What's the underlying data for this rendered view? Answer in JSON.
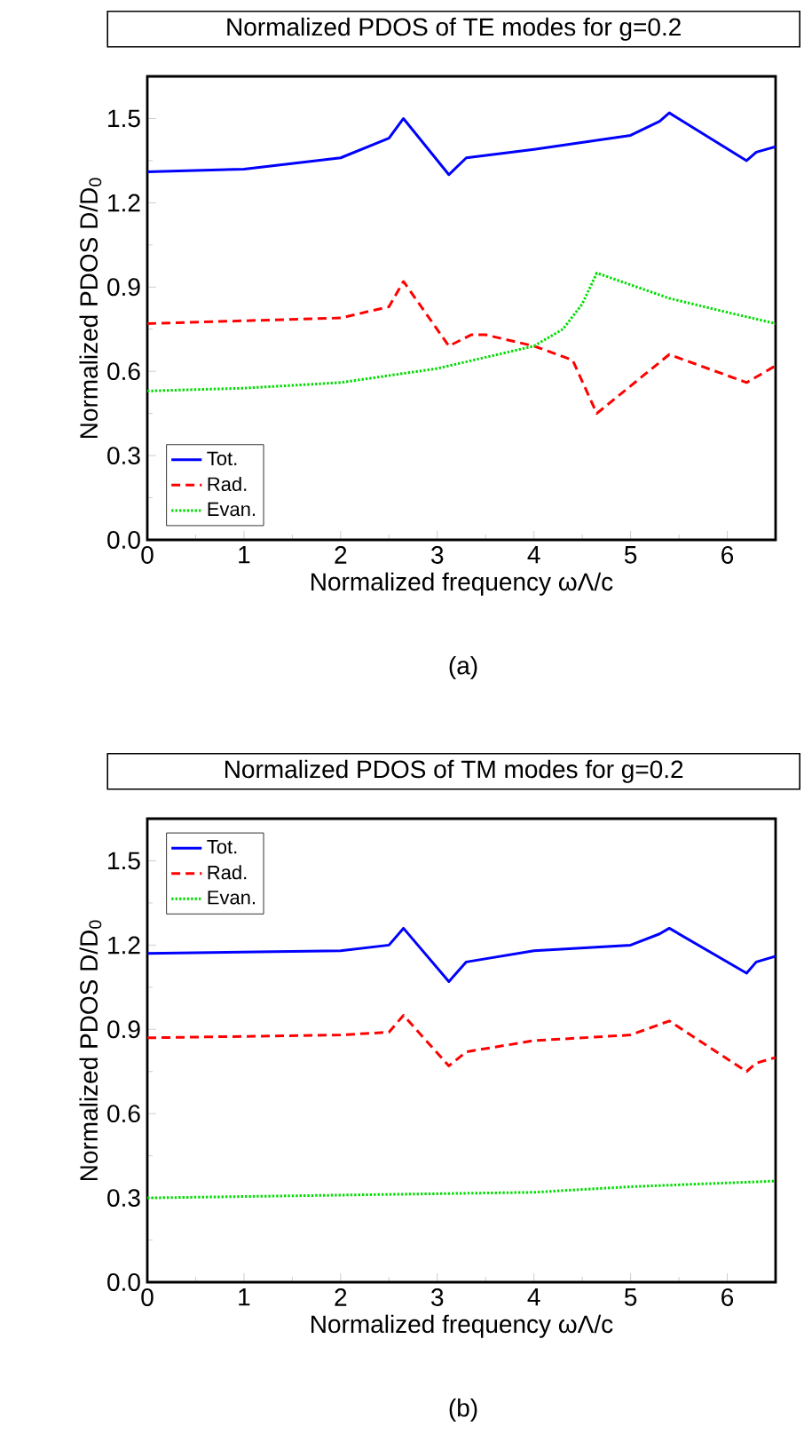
{
  "chart_data": [
    {
      "type": "line",
      "title": "Normalized PDOS of TE modes for g=0.2",
      "xlabel": "Normalized frequency ωΛ/c",
      "ylabel": "Normalized PDOS D/D$_{0}$",
      "annotations": [
        "(a)"
      ],
      "xlim": [
        0,
        6.5
      ],
      "ylim": [
        0,
        1.65
      ],
      "xticks": [
        0,
        1,
        2,
        3,
        4,
        5,
        6
      ],
      "yticks": [
        {
          "value": 0,
          "label": "0.0"
        },
        0.3,
        0.6,
        0.9,
        1.2,
        1.5
      ],
      "legend": "bottom left",
      "series": [
        {
          "name": "Tot.",
          "color": "#0000ff",
          "line_style": "solid",
          "x": [
            0,
            1,
            2,
            2.5,
            2.65,
            3.12,
            3.3,
            4,
            5,
            5.3,
            5.4,
            6.2,
            6.3,
            6.5
          ],
          "values": [
            1.31,
            1.32,
            1.36,
            1.43,
            1.5,
            1.3,
            1.36,
            1.39,
            1.44,
            1.49,
            1.52,
            1.35,
            1.38,
            1.4
          ]
        },
        {
          "name": "Rad.",
          "color": "#ff0000",
          "line_style": "dashed",
          "x": [
            0,
            2,
            2.5,
            2.65,
            3.12,
            3.35,
            3.5,
            4,
            4.4,
            4.65,
            5.4,
            6.2,
            6.5
          ],
          "values": [
            0.77,
            0.79,
            0.83,
            0.92,
            0.69,
            0.73,
            0.73,
            0.69,
            0.64,
            0.45,
            0.66,
            0.56,
            0.62
          ]
        },
        {
          "name": "Evan.",
          "color": "#00dd00",
          "line_style": "dotted",
          "x": [
            0,
            1,
            2,
            3,
            3.5,
            4,
            4.3,
            4.5,
            4.65,
            5.4,
            6,
            6.5
          ],
          "values": [
            0.53,
            0.54,
            0.56,
            0.61,
            0.65,
            0.69,
            0.75,
            0.84,
            0.95,
            0.86,
            0.81,
            0.77
          ]
        }
      ]
    },
    {
      "type": "line",
      "title": "Normalized PDOS of TM modes for g=0.2",
      "xlabel": "Normalized frequency ωΛ/c",
      "ylabel": "Normalized PDOS D/D$_{0}$",
      "annotations": [
        "(b)"
      ],
      "xlim": [
        0,
        6.5
      ],
      "ylim": [
        0,
        1.65
      ],
      "xticks": [
        0,
        1,
        2,
        3,
        4,
        5,
        6
      ],
      "yticks": [
        {
          "value": 0,
          "label": "0.0"
        },
        0.3,
        0.6,
        0.9,
        1.2,
        1.5
      ],
      "legend": "top left",
      "series": [
        {
          "name": "Tot.",
          "color": "#0000ff",
          "line_style": "solid",
          "x": [
            0,
            2,
            2.5,
            2.65,
            3.12,
            3.3,
            4,
            5,
            5.3,
            5.4,
            6.2,
            6.3,
            6.5
          ],
          "values": [
            1.17,
            1.18,
            1.2,
            1.26,
            1.07,
            1.14,
            1.18,
            1.2,
            1.24,
            1.26,
            1.1,
            1.14,
            1.16
          ]
        },
        {
          "name": "Rad.",
          "color": "#ff0000",
          "line_style": "dashed",
          "x": [
            0,
            2,
            2.5,
            2.65,
            3.12,
            3.3,
            4,
            5,
            5.4,
            6.2,
            6.3,
            6.5
          ],
          "values": [
            0.87,
            0.88,
            0.89,
            0.95,
            0.77,
            0.82,
            0.86,
            0.88,
            0.93,
            0.75,
            0.78,
            0.8
          ]
        },
        {
          "name": "Evan.",
          "color": "#00dd00",
          "line_style": "dotted",
          "x": [
            0,
            2,
            4,
            5,
            6.5
          ],
          "values": [
            0.3,
            0.31,
            0.32,
            0.34,
            0.36
          ]
        }
      ]
    }
  ]
}
